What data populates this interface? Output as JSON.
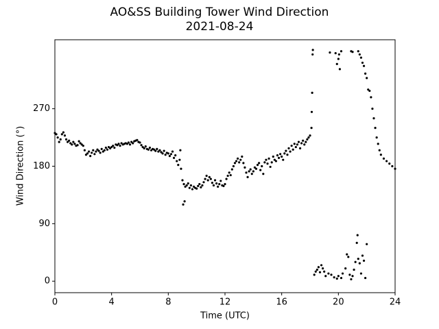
{
  "chart_data": {
    "type": "scatter",
    "title": "AO&SS Building Tower Wind Direction",
    "subtitle": "2021-08-24",
    "x_label": "Time (UTC)",
    "y_label": "Wind Direction (°)",
    "color": "#000000",
    "xlim": [
      0,
      24
    ],
    "xticks": [
      0,
      4,
      8,
      12,
      16,
      20,
      24
    ],
    "ylim": [
      -18,
      378
    ],
    "yticks": [
      0,
      90,
      180,
      270
    ],
    "x": [
      0,
      0.1,
      0.2,
      0.3,
      0.4,
      0.5,
      0.6,
      0.7,
      0.8,
      0.9,
      1,
      1.1,
      1.2,
      1.3,
      1.4,
      1.5,
      1.6,
      1.7,
      1.8,
      1.9,
      2,
      2.1,
      2.2,
      2.3,
      2.4,
      2.5,
      2.6,
      2.7,
      2.8,
      2.9,
      3,
      3.1,
      3.2,
      3.3,
      3.4,
      3.5,
      3.6,
      3.7,
      3.8,
      3.9,
      4,
      4.1,
      4.2,
      4.3,
      4.4,
      4.5,
      4.6,
      4.7,
      4.8,
      4.9,
      5,
      5.1,
      5.2,
      5.3,
      5.4,
      5.5,
      5.6,
      5.7,
      5.8,
      5.9,
      6,
      6.1,
      6.2,
      6.3,
      6.4,
      6.5,
      6.6,
      6.7,
      6.8,
      6.9,
      7,
      7.1,
      7.2,
      7.3,
      7.4,
      7.5,
      7.6,
      7.7,
      7.8,
      7.9,
      8,
      8.1,
      8.2,
      8.3,
      8.4,
      8.5,
      8.6,
      8.7,
      8.8,
      8.9,
      9,
      9.1,
      9.2,
      9.3,
      9.4,
      9.5,
      9.6,
      9.7,
      9.8,
      9.9,
      10,
      10.1,
      10.2,
      10.3,
      10.4,
      10.5,
      10.6,
      10.7,
      10.8,
      10.9,
      11,
      11.1,
      11.2,
      11.3,
      11.4,
      11.5,
      11.6,
      11.7,
      11.8,
      11.9,
      12,
      12.1,
      12.2,
      12.3,
      12.4,
      12.5,
      12.6,
      12.7,
      12.8,
      12.9,
      13,
      13.1,
      13.2,
      13.3,
      13.4,
      13.5,
      13.6,
      13.7,
      13.8,
      13.9,
      14,
      14.1,
      14.2,
      14.3,
      14.4,
      14.5,
      14.6,
      14.7,
      14.8,
      14.9,
      15,
      15.1,
      15.2,
      15.3,
      15.4,
      15.5,
      15.6,
      15.7,
      15.8,
      15.9,
      16,
      16.1,
      16.2,
      16.3,
      16.4,
      16.5,
      16.6,
      16.7,
      16.8,
      16.9,
      17,
      17.1,
      17.2,
      17.3,
      17.4,
      17.5,
      17.6,
      17.7,
      17.8,
      17.9,
      18,
      18.1,
      9.05,
      9.15,
      8.85,
      18.12,
      18.15,
      18.18,
      18.2,
      18.3,
      18.4,
      18.5,
      18.6,
      18.7,
      18.8,
      18.9,
      19,
      19.1,
      19.3,
      19.5,
      19.7,
      19.9,
      20,
      20.2,
      20.3,
      20.5,
      20.6,
      20.7,
      20.8,
      20.9,
      21,
      21.1,
      21.2,
      21.3,
      21.35,
      21.4,
      21.5,
      21.6,
      21.7,
      21.8,
      21.9,
      22,
      19.4,
      19.8,
      19.9,
      20,
      20.1,
      20.05,
      20.2,
      20.9,
      21,
      21.4,
      21.5,
      21.6,
      21.7,
      21.8,
      21.9,
      22,
      22.1,
      22.2,
      22.3,
      22.4,
      22.5,
      22.6,
      22.7,
      22.8,
      22.9,
      23,
      23.2,
      23.4,
      23.6,
      23.8,
      24
    ],
    "values": [
      232,
      230,
      225,
      218,
      222,
      230,
      233,
      228,
      222,
      218,
      220,
      216,
      214,
      218,
      215,
      212,
      213,
      219,
      216,
      214,
      212,
      205,
      198,
      200,
      203,
      196,
      201,
      205,
      199,
      203,
      206,
      204,
      201,
      207,
      203,
      205,
      209,
      206,
      210,
      208,
      210,
      212,
      209,
      214,
      213,
      215,
      212,
      216,
      214,
      215,
      216,
      215,
      217,
      214,
      218,
      216,
      219,
      220,
      221,
      218,
      217,
      213,
      210,
      208,
      211,
      207,
      206,
      209,
      205,
      207,
      206,
      204,
      207,
      203,
      205,
      202,
      200,
      204,
      198,
      201,
      200,
      196,
      199,
      203,
      193,
      197,
      188,
      182,
      190,
      176,
      158,
      152,
      148,
      150,
      153,
      146,
      150,
      144,
      148,
      146,
      145,
      149,
      152,
      147,
      150,
      155,
      160,
      165,
      158,
      163,
      160,
      154,
      150,
      158,
      153,
      148,
      152,
      157,
      150,
      149,
      152,
      160,
      165,
      170,
      166,
      175,
      180,
      185,
      188,
      192,
      186,
      190,
      195,
      185,
      178,
      170,
      163,
      172,
      175,
      168,
      172,
      178,
      176,
      182,
      185,
      174,
      180,
      168,
      186,
      190,
      184,
      192,
      179,
      186,
      195,
      190,
      188,
      197,
      193,
      199,
      195,
      190,
      200,
      204,
      198,
      208,
      203,
      212,
      206,
      215,
      210,
      214,
      218,
      208,
      216,
      220,
      214,
      218,
      222,
      225,
      228,
      240,
      120,
      125,
      205,
      265,
      295,
      355,
      362,
      10,
      15,
      18,
      22,
      14,
      25,
      20,
      15,
      8,
      12,
      10,
      6,
      4,
      8,
      5,
      12,
      20,
      42,
      38,
      10,
      3,
      8,
      18,
      30,
      60,
      72,
      35,
      28,
      12,
      40,
      32,
      5,
      58,
      358,
      357,
      340,
      348,
      332,
      355,
      360,
      360,
      359,
      360,
      355,
      350,
      342,
      337,
      325,
      318,
      300,
      298,
      288,
      270,
      255,
      240,
      225,
      215,
      205,
      198,
      192,
      188,
      184,
      180,
      176
    ]
  }
}
